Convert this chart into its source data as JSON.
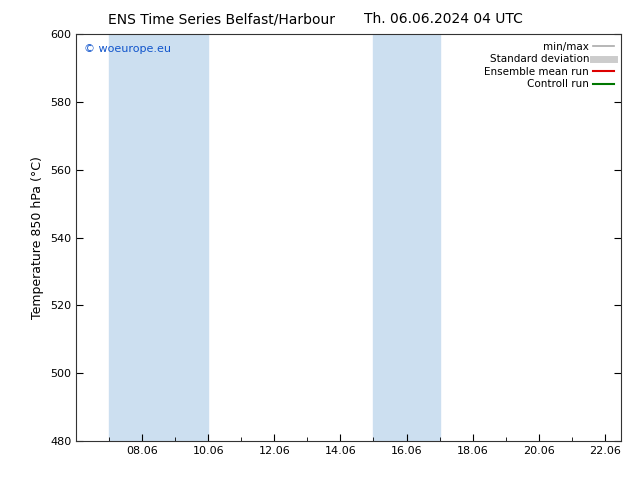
{
  "title_left": "ENS Time Series Belfast/Harbour",
  "title_right": "Th. 06.06.2024 04 UTC",
  "ylabel": "Temperature 850 hPa (°C)",
  "ylim": [
    480,
    600
  ],
  "yticks": [
    480,
    500,
    520,
    540,
    560,
    580,
    600
  ],
  "xtick_labels": [
    "08.06",
    "10.06",
    "12.06",
    "14.06",
    "16.06",
    "18.06",
    "20.06",
    "22.06"
  ],
  "xtick_positions": [
    2,
    4,
    6,
    8,
    10,
    12,
    14,
    16
  ],
  "xlim": [
    0,
    16.5
  ],
  "shaded_bands": [
    {
      "x_start": 1.0,
      "x_end": 4.0
    },
    {
      "x_start": 9.0,
      "x_end": 11.0
    }
  ],
  "shade_color": "#ccdff0",
  "background_color": "#ffffff",
  "watermark": "© woeurope.eu",
  "watermark_color": "#1155cc",
  "legend_items": [
    {
      "label": "min/max",
      "color": "#aaaaaa",
      "lw": 1.2,
      "style": "solid"
    },
    {
      "label": "Standard deviation",
      "color": "#cccccc",
      "lw": 5,
      "style": "solid"
    },
    {
      "label": "Ensemble mean run",
      "color": "#dd0000",
      "lw": 1.5,
      "style": "solid"
    },
    {
      "label": "Controll run",
      "color": "#007700",
      "lw": 1.5,
      "style": "solid"
    }
  ],
  "title_fontsize": 10,
  "tick_fontsize": 8,
  "ylabel_fontsize": 9,
  "legend_fontsize": 7.5,
  "watermark_fontsize": 8
}
